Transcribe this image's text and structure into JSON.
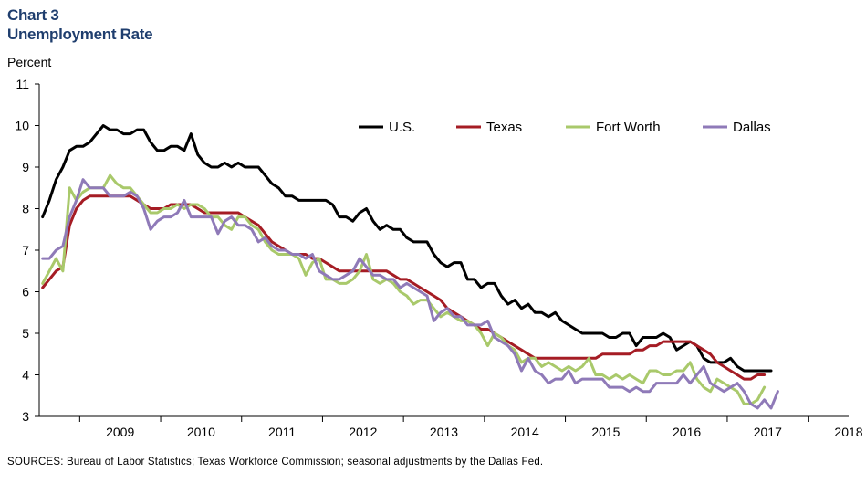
{
  "header": {
    "chart_number": "Chart 3",
    "title": "Unemployment Rate"
  },
  "footer": {
    "sources": "SOURCES: Bureau of Labor Statistics; Texas Workforce Commission; seasonal adjustments by the Dallas Fed."
  },
  "chart_data": {
    "type": "line",
    "title": "Unemployment Rate",
    "ylabel": "Percent",
    "xlabel": "",
    "ylim": [
      3,
      11
    ],
    "yticks": [
      3,
      4,
      5,
      6,
      7,
      8,
      9,
      10,
      11
    ],
    "xlim": [
      2008.5,
      2018.5
    ],
    "year_labels": [
      "2009",
      "2010",
      "2011",
      "2012",
      "2013",
      "2014",
      "2015",
      "2016",
      "2017",
      "2018"
    ],
    "legend_position": "top-right",
    "grid": false,
    "x_start": "2008-07",
    "frequency": "monthly",
    "series": [
      {
        "name": "U.S.",
        "color": "#000000",
        "values": [
          7.8,
          8.2,
          8.7,
          9.0,
          9.4,
          9.5,
          9.5,
          9.6,
          9.8,
          10.0,
          9.9,
          9.9,
          9.8,
          9.8,
          9.9,
          9.9,
          9.6,
          9.4,
          9.4,
          9.5,
          9.5,
          9.4,
          9.8,
          9.3,
          9.1,
          9.0,
          9.0,
          9.1,
          9.0,
          9.1,
          9.0,
          9.0,
          9.0,
          8.8,
          8.6,
          8.5,
          8.3,
          8.3,
          8.2,
          8.2,
          8.2,
          8.2,
          8.2,
          8.1,
          7.8,
          7.8,
          7.7,
          7.9,
          8.0,
          7.7,
          7.5,
          7.6,
          7.5,
          7.5,
          7.3,
          7.2,
          7.2,
          7.2,
          6.9,
          6.7,
          6.6,
          6.7,
          6.7,
          6.3,
          6.3,
          6.1,
          6.2,
          6.2,
          5.9,
          5.7,
          5.8,
          5.6,
          5.7,
          5.5,
          5.5,
          5.4,
          5.5,
          5.3,
          5.2,
          5.1,
          5.0,
          5.0,
          5.0,
          5.0,
          4.9,
          4.9,
          5.0,
          5.0,
          4.7,
          4.9,
          4.9,
          4.9,
          5.0,
          4.9,
          4.6,
          4.7,
          4.8,
          4.7,
          4.4,
          4.3,
          4.3,
          4.3,
          4.4,
          4.2,
          4.1,
          4.1,
          4.1,
          4.1,
          4.1
        ]
      },
      {
        "name": "Texas",
        "color": "#a51c24",
        "values": [
          6.1,
          6.3,
          6.5,
          6.6,
          7.6,
          8.0,
          8.2,
          8.3,
          8.3,
          8.3,
          8.3,
          8.3,
          8.3,
          8.3,
          8.2,
          8.1,
          8.0,
          8.0,
          8.0,
          8.1,
          8.1,
          8.1,
          8.1,
          8.0,
          7.9,
          7.9,
          7.9,
          7.9,
          7.9,
          7.9,
          7.8,
          7.7,
          7.6,
          7.4,
          7.2,
          7.1,
          7.0,
          6.9,
          6.9,
          6.9,
          6.8,
          6.8,
          6.7,
          6.6,
          6.5,
          6.5,
          6.5,
          6.5,
          6.5,
          6.5,
          6.5,
          6.5,
          6.4,
          6.3,
          6.3,
          6.2,
          6.1,
          6.0,
          5.9,
          5.8,
          5.6,
          5.5,
          5.4,
          5.3,
          5.2,
          5.1,
          5.1,
          5.0,
          4.9,
          4.8,
          4.7,
          4.6,
          4.5,
          4.4,
          4.4,
          4.4,
          4.4,
          4.4,
          4.4,
          4.4,
          4.4,
          4.4,
          4.4,
          4.5,
          4.5,
          4.5,
          4.5,
          4.5,
          4.6,
          4.6,
          4.7,
          4.7,
          4.8,
          4.8,
          4.8,
          4.8,
          4.8,
          4.7,
          4.6,
          4.5,
          4.3,
          4.2,
          4.1,
          4.0,
          3.9,
          3.9,
          4.0,
          4.0
        ]
      },
      {
        "name": "Fort Worth",
        "color": "#a9c96b",
        "values": [
          6.2,
          6.5,
          6.8,
          6.5,
          8.5,
          8.2,
          8.4,
          8.5,
          8.5,
          8.5,
          8.8,
          8.6,
          8.5,
          8.5,
          8.3,
          8.1,
          7.9,
          7.9,
          8.0,
          8.0,
          8.1,
          8.0,
          8.1,
          8.1,
          8.0,
          7.8,
          7.8,
          7.6,
          7.5,
          7.8,
          7.8,
          7.6,
          7.5,
          7.2,
          7.0,
          6.9,
          6.9,
          6.9,
          6.8,
          6.4,
          6.7,
          6.8,
          6.3,
          6.3,
          6.2,
          6.2,
          6.3,
          6.5,
          6.9,
          6.3,
          6.2,
          6.3,
          6.2,
          6.0,
          5.9,
          5.7,
          5.8,
          5.8,
          5.6,
          5.4,
          5.5,
          5.4,
          5.3,
          5.3,
          5.2,
          5.0,
          4.7,
          5.0,
          4.9,
          4.7,
          4.6,
          4.3,
          4.4,
          4.4,
          4.2,
          4.3,
          4.2,
          4.1,
          4.2,
          4.1,
          4.2,
          4.4,
          4.0,
          4.0,
          3.9,
          4.0,
          3.9,
          4.0,
          3.9,
          3.8,
          4.1,
          4.1,
          4.0,
          4.0,
          4.1,
          4.1,
          4.3,
          3.9,
          3.7,
          3.6,
          3.9,
          3.8,
          3.7,
          3.6,
          3.3,
          3.3,
          3.4,
          3.7
        ]
      },
      {
        "name": "Dallas",
        "color": "#8f7ab8",
        "values": [
          6.8,
          6.8,
          7.0,
          7.1,
          7.8,
          8.2,
          8.7,
          8.5,
          8.5,
          8.5,
          8.3,
          8.3,
          8.3,
          8.4,
          8.3,
          8.0,
          7.5,
          7.7,
          7.8,
          7.8,
          7.9,
          8.2,
          7.8,
          7.8,
          7.8,
          7.8,
          7.4,
          7.7,
          7.8,
          7.6,
          7.6,
          7.5,
          7.2,
          7.3,
          7.1,
          7.0,
          7.0,
          6.9,
          6.9,
          6.8,
          6.9,
          6.5,
          6.4,
          6.3,
          6.3,
          6.4,
          6.5,
          6.8,
          6.6,
          6.4,
          6.4,
          6.3,
          6.3,
          6.1,
          6.2,
          6.1,
          6.0,
          5.9,
          5.3,
          5.5,
          5.6,
          5.4,
          5.4,
          5.2,
          5.2,
          5.2,
          5.3,
          4.9,
          4.8,
          4.7,
          4.5,
          4.1,
          4.4,
          4.1,
          4.0,
          3.8,
          3.9,
          3.9,
          4.1,
          3.8,
          3.9,
          3.9,
          3.9,
          3.9,
          3.7,
          3.7,
          3.7,
          3.6,
          3.7,
          3.6,
          3.6,
          3.8,
          3.8,
          3.8,
          3.8,
          4.0,
          3.8,
          4.0,
          4.2,
          3.8,
          3.7,
          3.6,
          3.7,
          3.8,
          3.6,
          3.3,
          3.2,
          3.4,
          3.2,
          3.6
        ]
      }
    ]
  }
}
